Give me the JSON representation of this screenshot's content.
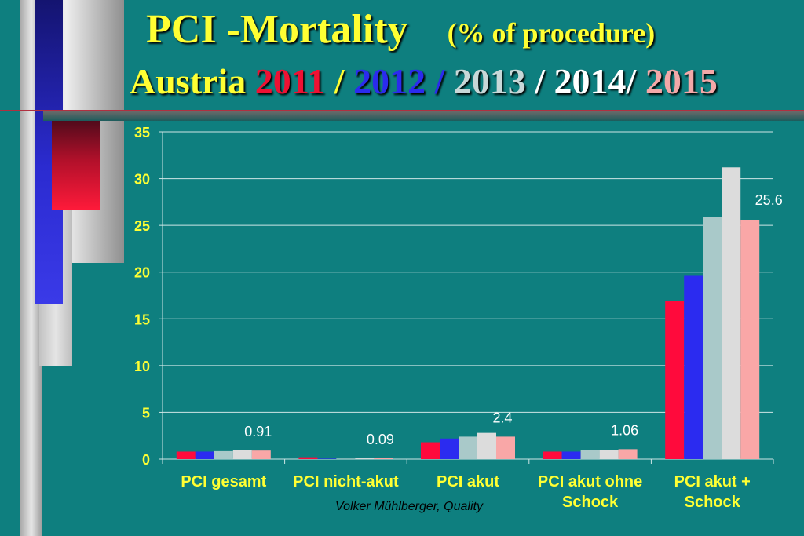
{
  "slide": {
    "title_line1": "PCI -Mortality",
    "title_subtitle": "(% of procedure)",
    "title_line2_prefix": "Austria",
    "years": [
      {
        "text": "2011",
        "color": "#ee1133"
      },
      {
        "text": " / ",
        "color": "#ffff33"
      },
      {
        "text": "2012",
        "color": "#2b2bee"
      },
      {
        "text": " / ",
        "color": "#2b2bee"
      },
      {
        "text": "2013",
        "color": "#c8d8d8"
      },
      {
        "text": " / 2014/ ",
        "color": "#ffffff"
      },
      {
        "text": "2015",
        "color": "#f4a8a8"
      }
    ],
    "footer": "Volker Mühlberger, Quality"
  },
  "colors": {
    "background": "#0e7f7f",
    "axis_text": "#ffff33",
    "data_label": "#ffffff",
    "grid": "#cfe6e6"
  },
  "chart_data": {
    "type": "bar",
    "ylim": [
      0,
      35
    ],
    "yticks": [
      0,
      5,
      10,
      15,
      20,
      25,
      30,
      35
    ],
    "grid": true,
    "categories": [
      [
        "PCI gesamt"
      ],
      [
        "PCI nicht-akut"
      ],
      [
        "PCI akut"
      ],
      [
        "PCI akut ohne",
        "Schock"
      ],
      [
        "PCI akut +",
        "Schock"
      ]
    ],
    "series": [
      {
        "name": "2011",
        "color": "#ff0a3c",
        "values": [
          0.8,
          0.2,
          1.8,
          0.8,
          16.9
        ]
      },
      {
        "name": "2012",
        "color": "#2b2bf0",
        "values": [
          0.8,
          0.05,
          2.2,
          0.8,
          19.6
        ]
      },
      {
        "name": "2013",
        "color": "#a9c9c9",
        "values": [
          0.85,
          0.06,
          2.4,
          1.0,
          25.9
        ]
      },
      {
        "name": "2014",
        "color": "#dcdcdc",
        "values": [
          1.0,
          0.08,
          2.8,
          1.0,
          31.2
        ]
      },
      {
        "name": "2015",
        "color": "#f9a7a7",
        "values": [
          0.91,
          0.09,
          2.4,
          1.06,
          25.6
        ]
      }
    ],
    "data_labels": [
      {
        "category": 0,
        "series": 4,
        "text": "0.91"
      },
      {
        "category": 1,
        "series": 4,
        "text": "0.09"
      },
      {
        "category": 2,
        "series": 4,
        "text": "2.4"
      },
      {
        "category": 3,
        "series": 4,
        "text": "1.06"
      },
      {
        "category": 4,
        "series": 4,
        "text": "25.6"
      }
    ]
  }
}
